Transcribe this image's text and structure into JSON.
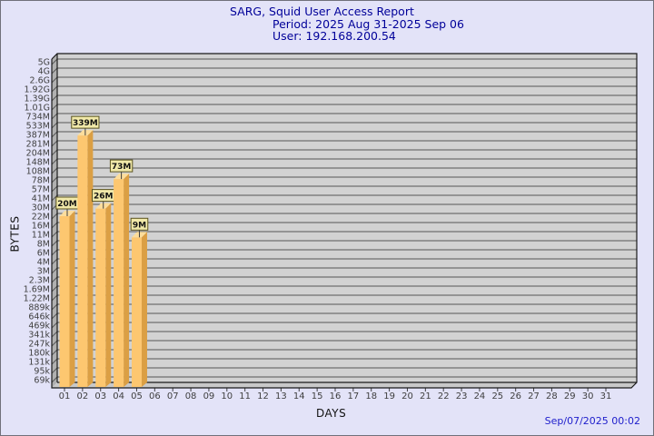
{
  "window": {
    "background": "#e3e3f8",
    "border_color": "#70707a"
  },
  "title": {
    "line1": "SARG, Squid User Access Report",
    "line2": "Period: 2025 Aug 31-2025 Sep 06",
    "line3": "User: 192.168.200.54",
    "color": "#000099"
  },
  "footer": {
    "timestamp": "Sep/07/2025 00:02",
    "color": "#2020cc"
  },
  "chart_data": {
    "type": "bar",
    "title": "SARG, Squid User Access Report",
    "subtitle": "Period: 2025 Aug 31-2025 Sep 06",
    "user": "User: 192.168.200.54",
    "xlabel": "DAYS",
    "ylabel": "BYTES",
    "y_scale": "log",
    "grid": "horizontal",
    "x_categories": [
      "01",
      "02",
      "03",
      "04",
      "05",
      "06",
      "07",
      "08",
      "09",
      "10",
      "11",
      "12",
      "13",
      "14",
      "15",
      "16",
      "17",
      "18",
      "19",
      "20",
      "21",
      "22",
      "23",
      "24",
      "25",
      "26",
      "27",
      "28",
      "29",
      "30",
      "31"
    ],
    "y_tick_labels": [
      "5G",
      "4G",
      "2.6G",
      "1.92G",
      "1.39G",
      "1.01G",
      "734M",
      "533M",
      "387M",
      "281M",
      "204M",
      "148M",
      "108M",
      "78M",
      "57M",
      "41M",
      "30M",
      "22M",
      "16M",
      "11M",
      "8M",
      "6M",
      "4M",
      "3M",
      "2.3M",
      "1.69M",
      "1.22M",
      "889k",
      "646k",
      "469k",
      "341k",
      "247k",
      "180k",
      "131k",
      "95k",
      "69k"
    ],
    "y_tick_values": [
      5000000000,
      4000000000,
      2600000000,
      1920000000,
      1390000000,
      1010000000,
      734000000,
      533000000,
      387000000,
      281000000,
      204000000,
      148000000,
      108000000,
      78000000,
      57000000,
      41000000,
      30000000,
      22000000,
      16000000,
      11000000,
      8000000,
      6000000,
      4000000,
      3000000,
      2300000,
      1690000,
      1220000,
      889000,
      646000,
      469000,
      341000,
      247000,
      180000,
      131000,
      95000,
      69000
    ],
    "bars": [
      {
        "day": "01",
        "value_label": "20M",
        "bytes": 20000000
      },
      {
        "day": "02",
        "value_label": "339M",
        "bytes": 339000000
      },
      {
        "day": "03",
        "value_label": "26M",
        "bytes": 26000000
      },
      {
        "day": "04",
        "value_label": "73M",
        "bytes": 73000000
      },
      {
        "day": "05",
        "value_label": "9M",
        "bytes": 9000000
      }
    ],
    "colors": {
      "bar_front": "#fdc770",
      "bar_side": "#db9f44",
      "bar_top": "#fcdd9c",
      "value_box_bg": "#f1e9a9",
      "value_box_border": "#5a531f",
      "plot_bg": "#d2d2d2",
      "side_wall_bg": "#b0b0b0",
      "floor_bg": "#c9c9c9",
      "gridline": "#565656",
      "axis": "#1a1a1a",
      "tick_text": "#3f3f3f"
    }
  }
}
